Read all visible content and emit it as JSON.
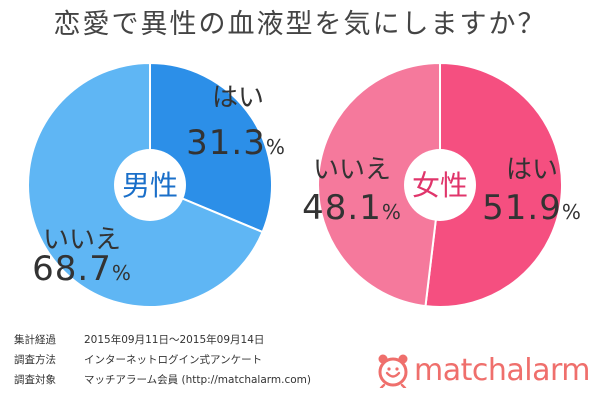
{
  "title": "恋愛で異性の血液型を気にしますか？",
  "chart_data": [
    {
      "type": "pie",
      "center_label": "男性",
      "slices": [
        {
          "label": "はい",
          "value": 31.3,
          "display": "31.3",
          "color": "#2c8fe8"
        },
        {
          "label": "いいえ",
          "value": 68.7,
          "display": "68.7",
          "color": "#5fb6f4"
        }
      ]
    },
    {
      "type": "pie",
      "center_label": "女性",
      "slices": [
        {
          "label": "はい",
          "value": 51.9,
          "display": "51.9",
          "color": "#f54f80"
        },
        {
          "label": "いいえ",
          "value": 48.1,
          "display": "48.1",
          "color": "#f5799c"
        }
      ]
    }
  ],
  "percent_sign": "%",
  "footer": [
    {
      "key": "集計経過",
      "value": "2015年09月11日～2015年09月14日"
    },
    {
      "key": "調査方法",
      "value": "インターネットログイン式アンケート"
    },
    {
      "key": "調査対象",
      "value": "マッチアラーム会員 (http://matchalarm.com)"
    }
  ],
  "logo": {
    "text": "matchalarm",
    "icon": "alarm-clock-icon",
    "color": "#ef6f6c"
  }
}
